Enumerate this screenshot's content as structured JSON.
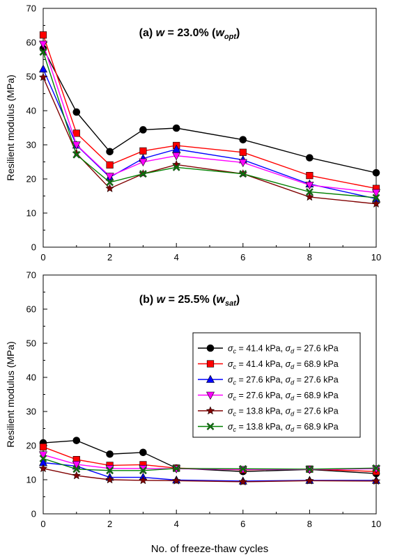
{
  "chart_data": [
    {
      "type": "line",
      "panel_title": {
        "prefix": "(a) ",
        "var": "w",
        "eq": " = 23.0% (",
        "sym": "w",
        "sub": "opt",
        "suffix": ")"
      },
      "xlabel": "",
      "ylabel": "Resilient modulus (MPa)",
      "xlim": [
        0,
        10
      ],
      "ylim": [
        0,
        70
      ],
      "xticks": [
        "0",
        "2",
        "4",
        "6",
        "8",
        "10"
      ],
      "yticks": [
        "0",
        "10",
        "20",
        "30",
        "40",
        "50",
        "60",
        "70"
      ],
      "x": [
        0,
        1,
        2,
        3,
        4,
        6,
        8,
        10
      ],
      "grid": false,
      "series": [
        {
          "values": [
            58.2,
            39.6,
            28.0,
            34.4,
            34.9,
            31.5,
            26.2,
            21.8
          ]
        },
        {
          "values": [
            62.2,
            33.4,
            24.1,
            28.2,
            29.8,
            27.8,
            21.0,
            17.2
          ]
        },
        {
          "values": [
            52.2,
            29.9,
            20.5,
            26.0,
            28.7,
            25.6,
            18.5,
            14.2
          ]
        },
        {
          "values": [
            59.5,
            30.0,
            20.8,
            25.0,
            26.8,
            24.8,
            18.2,
            16.0
          ]
        },
        {
          "values": [
            49.8,
            27.5,
            17.2,
            21.5,
            24.2,
            21.5,
            14.7,
            12.7
          ]
        },
        {
          "values": [
            57.2,
            27.1,
            19.0,
            21.5,
            23.4,
            21.5,
            16.2,
            14.5
          ]
        }
      ]
    },
    {
      "type": "line",
      "panel_title": {
        "prefix": "(b) ",
        "var": "w",
        "eq": " = 25.5% (",
        "sym": "w",
        "sub": "sat",
        "suffix": ")"
      },
      "xlabel": "No. of freeze-thaw cycles",
      "ylabel": "Resilient modulus (MPa)",
      "xlim": [
        0,
        10
      ],
      "ylim": [
        0,
        70
      ],
      "xticks": [
        "0",
        "2",
        "4",
        "6",
        "8",
        "10"
      ],
      "yticks": [
        "0",
        "10",
        "20",
        "30",
        "40",
        "50",
        "60",
        "70"
      ],
      "x": [
        0,
        1,
        2,
        3,
        4,
        6,
        8,
        10
      ],
      "grid": false,
      "legend_position": "right, middle",
      "series": [
        {
          "legend": {
            "c": "41.4",
            "d": "27.6"
          },
          "values": [
            20.8,
            21.5,
            17.5,
            18.0,
            13.4,
            12.4,
            13.0,
            11.8
          ]
        },
        {
          "legend": {
            "c": "41.4",
            "d": "68.9"
          },
          "values": [
            19.6,
            15.9,
            14.2,
            14.4,
            13.4,
            12.9,
            13.1,
            12.4
          ]
        },
        {
          "legend": {
            "c": "27.6",
            "d": "27.6"
          },
          "values": [
            15.0,
            14.0,
            10.7,
            10.7,
            9.9,
            9.6,
            9.8,
            9.8
          ]
        },
        {
          "legend": {
            "c": "27.6",
            "d": "68.9"
          },
          "values": [
            17.3,
            14.5,
            13.3,
            13.3,
            13.2,
            13.0,
            13.0,
            13.2
          ]
        },
        {
          "legend": {
            "c": "13.8",
            "d": "27.6"
          },
          "values": [
            13.3,
            11.2,
            10.0,
            9.8,
            9.7,
            9.4,
            9.7,
            9.6
          ]
        },
        {
          "legend": {
            "c": "13.8",
            "d": "68.9"
          },
          "values": [
            16.2,
            13.1,
            12.7,
            12.7,
            13.3,
            13.2,
            13.1,
            13.4
          ]
        }
      ]
    }
  ],
  "legend_format": {
    "sym_c": "σ",
    "sub_c": "c",
    "sym_d": "σ",
    "sub_d": "d",
    "unit": " kPa",
    "eq": " = ",
    "sep": ", "
  },
  "series_style": [
    {
      "color": "#000000",
      "marker": "circle"
    },
    {
      "color": "#ff0000",
      "marker": "square"
    },
    {
      "color": "#0000ff",
      "marker": "triangle"
    },
    {
      "color": "#ff00ff",
      "marker": "triangle-down"
    },
    {
      "color": "#800000",
      "marker": "star"
    },
    {
      "color": "#008000",
      "marker": "x"
    }
  ]
}
